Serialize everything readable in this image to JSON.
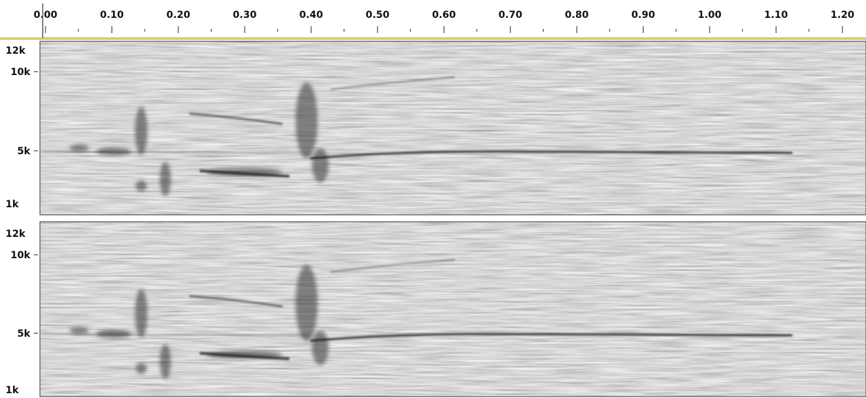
{
  "ruler": {
    "ticks": [
      "0.00",
      "0.10",
      "0.20",
      "0.30",
      "0.40",
      "0.50",
      "0.60",
      "0.70",
      "0.80",
      "0.90",
      "1.00",
      "1.10",
      "1.20"
    ]
  },
  "tracks": [
    {
      "labels": [
        "12k",
        "10k",
        "5k",
        "1k"
      ]
    },
    {
      "labels": [
        "12k",
        "10k",
        "5k",
        "1k"
      ]
    }
  ]
}
